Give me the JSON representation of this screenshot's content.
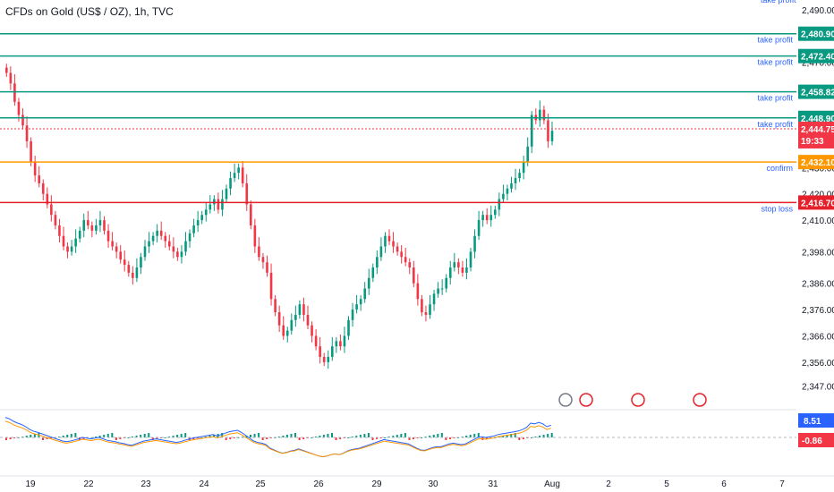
{
  "header": {
    "title": "CFDs on Gold (US$ / OZ), 1h, TVC"
  },
  "chart_data": {
    "type": "candlestick",
    "symbol": "CFDs on Gold (US$ / OZ)",
    "interval": "1h",
    "source": "TVC",
    "ylim": [
      2342,
      2491
    ],
    "y_ticks": [
      "2,490.00",
      "2,470.00",
      "2,460.00",
      "2,440.00",
      "2,430.00",
      "2,420.00",
      "2,410.00",
      "2,398.00",
      "2,386.00",
      "2,376.00",
      "2,366.00",
      "2,356.00",
      "2,347.00"
    ],
    "x_ticks": [
      "19",
      "22",
      "23",
      "24",
      "25",
      "26",
      "29",
      "30",
      "31",
      "Aug",
      "2",
      "5",
      "6",
      "7"
    ],
    "levels": [
      {
        "label": "take profit",
        "value": "2,480.90",
        "price": 2480.9,
        "color": "#089981"
      },
      {
        "label": "take profit",
        "value": "2,472.40",
        "price": 2472.4,
        "color": "#089981"
      },
      {
        "label": "take profit",
        "value": "2,458.82",
        "price": 2458.82,
        "color": "#089981"
      },
      {
        "label": "take profit",
        "value": "2,448.90",
        "price": 2448.9,
        "color": "#089981"
      },
      {
        "label": "confirm",
        "value": "2,432.10",
        "price": 2432.1,
        "color": "#ff9800"
      },
      {
        "label": "stop loss",
        "value": "2,416.70",
        "price": 2416.7,
        "color": "#e5202a"
      }
    ],
    "last_price": {
      "value": "2,444.75",
      "countdown": "19:33",
      "price": 2444.75,
      "color": "#f23645"
    },
    "top_partial_label": "take profit",
    "closes": [
      2466,
      2462,
      2455,
      2450,
      2446,
      2440,
      2432,
      2427,
      2424,
      2420,
      2416,
      2412,
      2408,
      2404,
      2400,
      2398,
      2400,
      2403,
      2406,
      2410,
      2408,
      2406,
      2408,
      2410,
      2406,
      2402,
      2400,
      2398,
      2395,
      2393,
      2390,
      2388,
      2392,
      2396,
      2400,
      2402,
      2404,
      2406,
      2404,
      2402,
      2400,
      2398,
      2396,
      2398,
      2402,
      2405,
      2408,
      2410,
      2412,
      2414,
      2416,
      2418,
      2414,
      2418,
      2422,
      2426,
      2428,
      2430,
      2424,
      2416,
      2408,
      2400,
      2396,
      2394,
      2390,
      2380,
      2375,
      2370,
      2366,
      2368,
      2372,
      2374,
      2378,
      2374,
      2370,
      2366,
      2362,
      2358,
      2356,
      2358,
      2362,
      2364,
      2362,
      2366,
      2372,
      2376,
      2378,
      2380,
      2384,
      2388,
      2392,
      2396,
      2400,
      2404,
      2402,
      2400,
      2398,
      2396,
      2394,
      2392,
      2386,
      2380,
      2375,
      2374,
      2378,
      2382,
      2384,
      2384,
      2388,
      2392,
      2394,
      2392,
      2390,
      2392,
      2398,
      2404,
      2410,
      2412,
      2410,
      2412,
      2414,
      2418,
      2420,
      2422,
      2424,
      2426,
      2428,
      2432,
      2438,
      2450,
      2448,
      2452,
      2448,
      2440,
      2444
    ],
    "indicator": {
      "name": "MACD",
      "value_1": "8.51",
      "value_2": "-0.86",
      "color_1": "#2962ff",
      "color_2": "#f23645"
    },
    "event_icons": [
      {
        "type": "news",
        "name": "lightning-icon"
      },
      {
        "type": "event",
        "name": "us-flag-icon"
      },
      {
        "type": "event",
        "name": "us-flag-icon"
      },
      {
        "type": "event",
        "name": "us-flag-icon"
      }
    ],
    "colors": {
      "up": "#089981",
      "down": "#f23645",
      "macd": "#2962ff",
      "signal": "#ff9800"
    }
  }
}
